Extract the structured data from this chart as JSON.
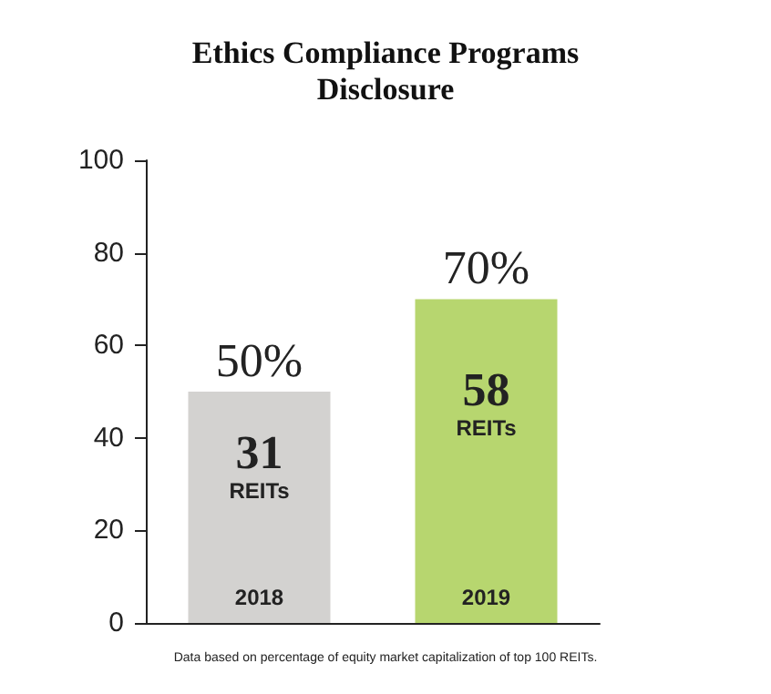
{
  "chart_data": {
    "type": "bar",
    "title": "Ethics Compliance Programs\nDisclosure",
    "categories": [
      "2018",
      "2019"
    ],
    "values": [
      50,
      70
    ],
    "colors": [
      "#d3d2d0",
      "#b7d66f"
    ],
    "value_labels": [
      "50%",
      "70%"
    ],
    "ylim": [
      0,
      100
    ],
    "yticks": [
      0,
      20,
      40,
      60,
      80,
      100
    ],
    "grid": false,
    "annotations": [
      "31\nREITs",
      "58\nREITs",
      "Data based on percentage of equity market capitalization of top 100 REITs."
    ]
  }
}
